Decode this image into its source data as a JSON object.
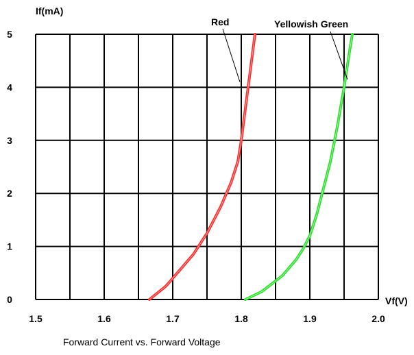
{
  "chart_data": {
    "type": "line",
    "title": "",
    "caption": "Forward Current vs. Forward Voltage",
    "xlabel": "Vf(V)",
    "ylabel": "If(mA)",
    "xlim": [
      1.5,
      2.0
    ],
    "ylim": [
      0,
      5
    ],
    "x_ticks": [
      "1.5",
      "1.6",
      "1.7",
      "1.8",
      "1.9",
      "2.0"
    ],
    "y_ticks": [
      "0",
      "1",
      "2",
      "3",
      "4",
      "5"
    ],
    "grid": true,
    "series": [
      {
        "name": "Red",
        "color": "#ff2a2a",
        "x": [
          1.666,
          1.69,
          1.71,
          1.73,
          1.75,
          1.77,
          1.785,
          1.795,
          1.8,
          1.805,
          1.81,
          1.815,
          1.82
        ],
        "y": [
          0.0,
          0.25,
          0.55,
          0.85,
          1.25,
          1.75,
          2.2,
          2.6,
          3.0,
          3.5,
          4.0,
          4.5,
          5.0
        ]
      },
      {
        "name": "Yellowish Green",
        "color": "#2adf2a",
        "x": [
          1.806,
          1.83,
          1.86,
          1.88,
          1.89,
          1.9,
          1.91,
          1.92,
          1.93,
          1.94,
          1.95,
          1.957,
          1.962
        ],
        "y": [
          0.0,
          0.15,
          0.45,
          0.75,
          0.95,
          1.2,
          1.6,
          2.1,
          2.6,
          3.25,
          4.0,
          4.6,
          5.0
        ]
      }
    ]
  }
}
